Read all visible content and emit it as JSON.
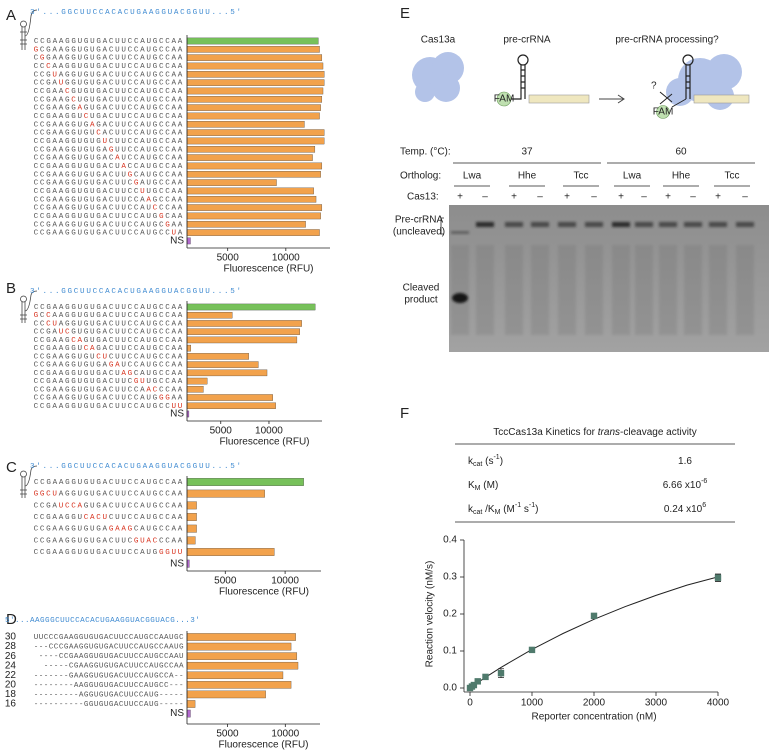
{
  "panel_labels": [
    "A",
    "B",
    "C",
    "D",
    "E",
    "F"
  ],
  "chart_data": [
    {
      "type": "barh",
      "header_sequence": "3'...GGCUUCCACACUGAAGGUACGGUU...5'",
      "mismatch_color": "#d8321e",
      "categories": [
        "CCGAAGGUGUGACUUCCAUGCCAA",
        "GCGAAGGUGUGACUUCCAUGCCAA",
        "CGGAAGGUGUGACUUCCAUGCCAA",
        "CCCAAGGUGUGACUUCCAUGCCAA",
        "CCGUAGGUGUGACUUCCAUGCCAA",
        "CCGAUGGUGUGACUUCCAUGCCAA",
        "CCGAACGUGUGACUUCCAUGCCAA",
        "CCGAAGCUGUGACUUCCAUGCCAA",
        "CCGAAGGAGUGACUUCCAUGCCAA",
        "CCGAAGGUCUGACUUCCAUGCCAA",
        "CCGAAGGUGAGACUUCCAUGCCAA",
        "CCGAAGGUGUCACUUCCAUGCCAA",
        "CCGAAGGUGUGUCUUCCAUGCCAA",
        "CCGAAGGUGUGAGUUCCAUGCCAA",
        "CCGAAGGUGUGACAUCCAUGCCAA",
        "CCGAAGGUGUGACUACCAUGCCAA",
        "CCGAAGGUGUGACUUGCAUGCCAA",
        "CCGAAGGUGUGACUUCGAUGCCAA",
        "CCGAAGGUGUGACUUCCUUGCCAA",
        "CCGAAGGUGUGACUUCCAAGCCAA",
        "CCGAAGGUGUGACUUCCAUCCCAA",
        "CCGAAGGUGUGACUUCCAUGGCAA",
        "CCGAAGGUGUGACUUCCAUGCGAA",
        "CCGAAGGUGUGACUUCCAUGCCUA",
        "NS"
      ],
      "values": [
        12800,
        12900,
        13100,
        13200,
        13300,
        13300,
        13200,
        13100,
        13000,
        12900,
        11600,
        13300,
        13300,
        12500,
        12300,
        13100,
        13000,
        9200,
        12400,
        12600,
        13100,
        13000,
        11700,
        12900,
        1800
      ],
      "colors": [
        "#77c15a",
        "#f2a24c",
        "#f2a24c",
        "#f2a24c",
        "#f2a24c",
        "#f2a24c",
        "#f2a24c",
        "#f2a24c",
        "#f2a24c",
        "#f2a24c",
        "#f2a24c",
        "#f2a24c",
        "#f2a24c",
        "#f2a24c",
        "#f2a24c",
        "#f2a24c",
        "#f2a24c",
        "#f2a24c",
        "#f2a24c",
        "#f2a24c",
        "#f2a24c",
        "#f2a24c",
        "#f2a24c",
        "#f2a24c",
        "#b46ad0"
      ],
      "xlim": [
        1500,
        13800
      ],
      "xticks": [
        5000,
        10000
      ],
      "xlabel": "Fluorescence (RFU)"
    },
    {
      "type": "barh",
      "header_sequence": "3'...GGCUUCCACACUGAAGGUACGGUU...5'",
      "mismatch_color": "#d8321e",
      "categories": [
        "CCGAAGGUGUGACUUCCAUGCCAA",
        "GCCAAGGUGUGACUUCCAUGCCAA",
        "CCCUAGGUGUGACUUCCAUGCCAA",
        "CCGAUCGUGUGACUUCCAUGCCAA",
        "CCGAAGCAGUGACUUCCAUGCCAA",
        "CCGAAGGUCAGACUUCCAUGCCAA",
        "CCGAAGGUGUCUCUUCCAUGCCAA",
        "CCGAAGGUGUGAGAUCCAUGCCAA",
        "CCGAAGGUGUGACUAGCAUGCCAA",
        "CCGAAGGUGUGACUUCGUUGCCAA",
        "CCGAAGGUGUGACUUCCAACCCAA",
        "CCGAAGGUGUGACUUCCAUGGGAA",
        "CCGAAGGUGUGACUUCCAUGCCUU",
        "NS"
      ],
      "values": [
        14800,
        6200,
        13400,
        13200,
        12900,
        1900,
        7900,
        8900,
        9800,
        3600,
        3200,
        10400,
        10700,
        1700
      ],
      "colors": [
        "#77c15a",
        "#f2a24c",
        "#f2a24c",
        "#f2a24c",
        "#f2a24c",
        "#f2a24c",
        "#f2a24c",
        "#f2a24c",
        "#f2a24c",
        "#f2a24c",
        "#f2a24c",
        "#f2a24c",
        "#f2a24c",
        "#b46ad0"
      ],
      "xlim": [
        1500,
        15500
      ],
      "xticks": [
        5000,
        10000
      ],
      "xlabel": "Fluorescence (RFU)"
    },
    {
      "type": "barh",
      "header_sequence": "3'...GGCUUCCACACUGAAGGUACGGUU...5'",
      "mismatch_color": "#d8321e",
      "categories": [
        "CCGAAGGUGUGACUUCCAUGCCAA",
        "GGCUAGGUGUGACUUCCAUGCCAA",
        "CCGAUCCAGUGACUUCCAUGCCAA",
        "CCGAAGGUCACUCUUCCAUGCCAA",
        "CCGAAGGUGUGAGAAGCAUGCCAA",
        "CCGAAGGUGUGACUUCGUACCCAA",
        "CCGAAGGUGUGACUUCCAUGGGUU",
        "NS"
      ],
      "values": [
        11550,
        8300,
        2600,
        2600,
        2600,
        2500,
        9100,
        2000
      ],
      "colors": [
        "#77c15a",
        "#f2a24c",
        "#f2a24c",
        "#f2a24c",
        "#f2a24c",
        "#f2a24c",
        "#f2a24c",
        "#b46ad0"
      ],
      "xlim": [
        1800,
        13000
      ],
      "xticks": [
        5000,
        10000
      ],
      "xlabel": "Fluorescence (RFU)"
    },
    {
      "type": "barh",
      "header_sequence": "5'...AAGGGCUUCCACACUGAAGGUACGGUACG...3'",
      "row_labels": [
        "30",
        "28",
        "26",
        "24",
        "22",
        "20",
        "18",
        "16"
      ],
      "categories": [
        "UUCCCGAAGGUGUGACUUCCAUGCCAAUGC",
        "---CCCGAAGGUGUGACUUCCAUGCCAAUG",
        "----CCGAAGGUGUGACUUCCAUGCCAAU",
        "-----CGAAGGUGUGACUUCCAUGCCAA",
        "-------GAAGGUGUGACUUCCAUGCCA--",
        "--------AAGGUGUGACUUCCAUGCC---",
        "---------AGGUGUGACUUCCAUG-----",
        "----------GGUGUGACUUCCAUG-----",
        "NS"
      ],
      "values": [
        10900,
        10500,
        11000,
        11100,
        9800,
        10500,
        8300,
        2200,
        1800
      ],
      "colors": [
        "#f2a24c",
        "#f2a24c",
        "#f2a24c",
        "#f2a24c",
        "#f2a24c",
        "#f2a24c",
        "#f2a24c",
        "#f2a24c",
        "#b46ad0"
      ],
      "xlim": [
        1500,
        13000
      ],
      "xticks": [
        5000,
        10000
      ],
      "xlabel": "Fluorescence (RFU)"
    },
    {
      "type": "scatter",
      "xlabel": "Reporter concentration (nM)",
      "ylabel": "Reaction velocity (nM/s)",
      "color": "#4f7a6c",
      "x": [
        0,
        31.25,
        62.5,
        125,
        250,
        500,
        1000,
        2000,
        4000
      ],
      "values": [
        0,
        0.004,
        0.008,
        0.018,
        0.03,
        0.04,
        0.103,
        0.195,
        0.298
      ],
      "errors": [
        0.001,
        0.001,
        0.001,
        0.002,
        0.003,
        0.012,
        0.002,
        0.002,
        0.01
      ],
      "fit": {
        "x": [
          0,
          250,
          500,
          1000,
          1500,
          2000,
          2500,
          3000,
          3500,
          4000
        ],
        "values": [
          0,
          0.0289,
          0.0558,
          0.1044,
          0.1474,
          0.1856,
          0.2197,
          0.2503,
          0.278,
          0.3002
        ]
      },
      "xlim": [
        0,
        4000
      ],
      "xticks": [
        0,
        1000,
        2000,
        3000,
        4000
      ],
      "ylim": [
        0,
        0.4
      ],
      "yticks": [
        {
          "value": 0,
          "label": "0.0"
        },
        0.1,
        0.2,
        0.3,
        0.4
      ]
    }
  ],
  "schematic": {
    "labels": [
      "Cas13a",
      "pre-crRNA",
      "pre-crRNA processing?"
    ],
    "fam": [
      "FAM",
      "FAM"
    ],
    "question": "?"
  },
  "gel": {
    "temp_label": "Temp. (°C):",
    "temps": [
      37,
      60
    ],
    "ortholog_label": "Ortholog:",
    "orthologs": [
      "Lwa",
      "Hhe",
      "Tcc",
      "Lwa",
      "Hhe",
      "Tcc"
    ],
    "cas13_label": "Cas13:",
    "cas13": [
      "+",
      "–",
      "+",
      "–",
      "+",
      "–",
      "+",
      "–",
      "+",
      "–",
      "+",
      "–"
    ],
    "uncleaved": [
      "Pre-crRNA",
      "(uncleaved)"
    ],
    "cleaved": [
      "Cleaved",
      "product"
    ]
  },
  "kinetics_table": {
    "title": [
      [
        "n",
        "TccCas13a Kinetics for "
      ],
      [
        "i",
        "trans"
      ],
      [
        "n",
        "-cleavage activity"
      ]
    ],
    "rows": [
      {
        "label": [
          [
            "n",
            "k"
          ],
          [
            "sub",
            "cat"
          ],
          [
            "n",
            " (s"
          ],
          [
            "sup",
            "-1"
          ],
          [
            "n",
            ")"
          ]
        ],
        "value": [
          [
            "n",
            "1.6"
          ]
        ]
      },
      {
        "label": [
          [
            "n",
            "K"
          ],
          [
            "sub",
            "M"
          ],
          [
            "n",
            " (M)"
          ]
        ],
        "value": [
          [
            "n",
            "6.66 x10"
          ],
          [
            "sup",
            "-6"
          ]
        ]
      },
      {
        "label": [
          [
            "n",
            "k"
          ],
          [
            "sub",
            "cat"
          ],
          [
            "n",
            " /K"
          ],
          [
            "sub",
            "M"
          ],
          [
            "n",
            " (M"
          ],
          [
            "sup",
            "-1"
          ],
          [
            "n",
            " s"
          ],
          [
            "sup",
            "-1"
          ],
          [
            "n",
            ")"
          ]
        ],
        "value": [
          [
            "n",
            "0.24 x10"
          ],
          [
            "sup",
            "6"
          ]
        ]
      }
    ]
  }
}
